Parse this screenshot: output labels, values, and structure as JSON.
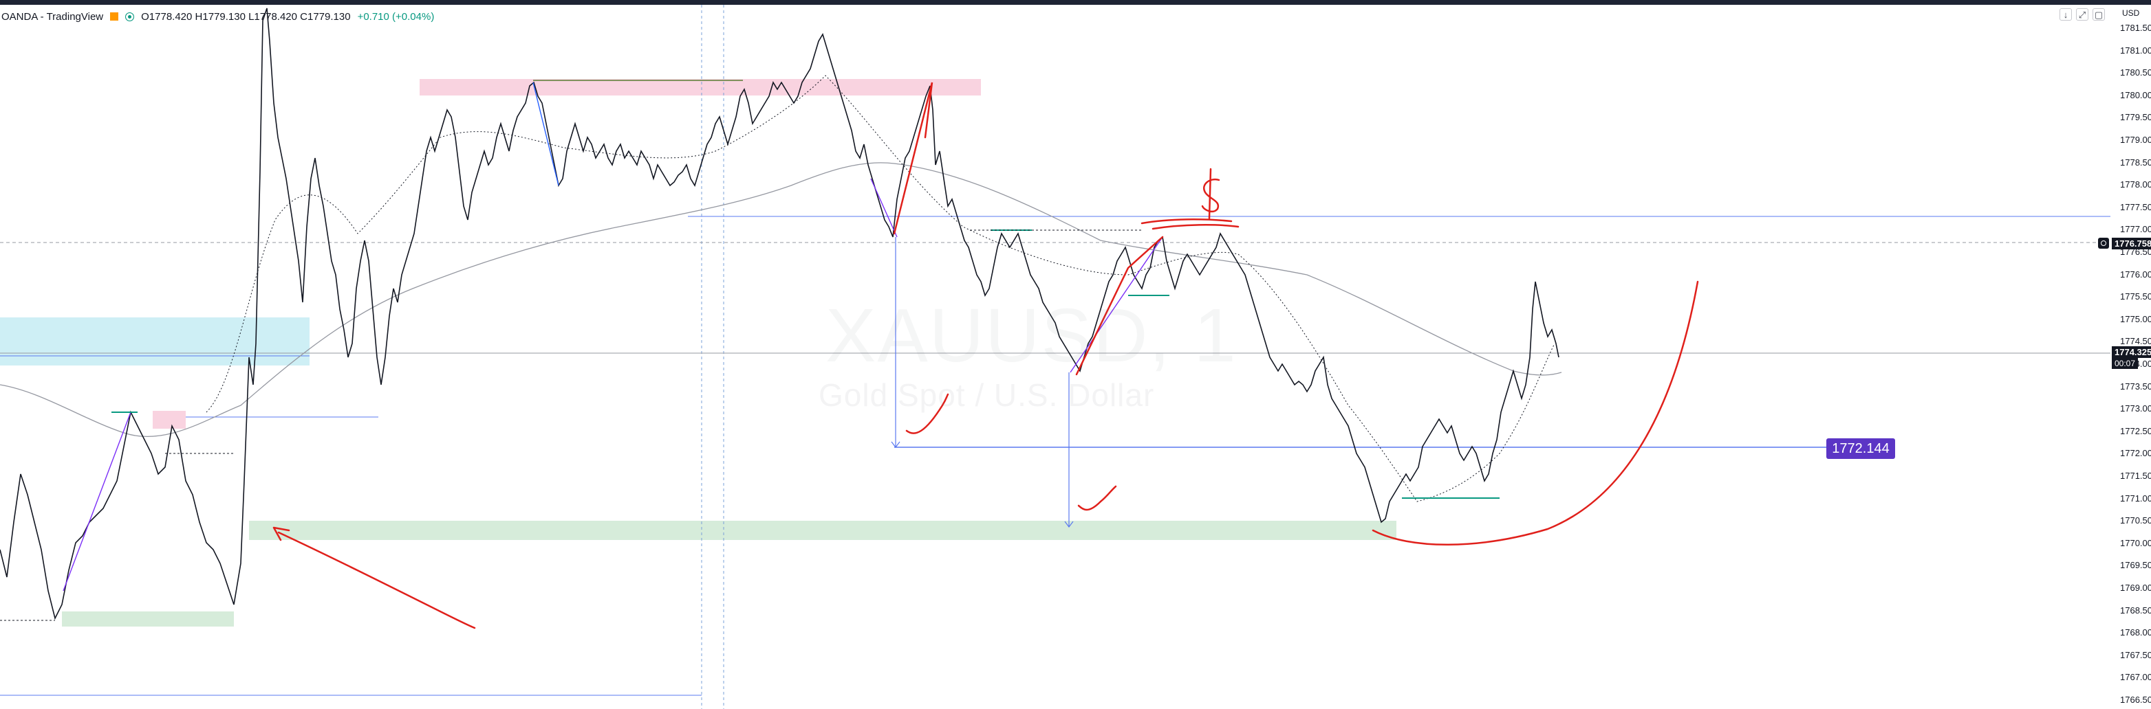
{
  "header": {
    "symbol_source": "OANDA - TradingView",
    "ohlc": "O1778.420 H1779.130 L1778.420 C1779.130",
    "change": "+0.710 (+0.04%)"
  },
  "watermark": {
    "ticker": "XAUUSD, 1",
    "description": "Gold Spot / U.S. Dollar"
  },
  "price_axis": {
    "currency": "USD",
    "ticks": [
      "1781.500",
      "1781.000",
      "1780.500",
      "1780.000",
      "1779.500",
      "1779.000",
      "1778.500",
      "1778.000",
      "1777.500",
      "1777.000",
      "1776.500",
      "1776.000",
      "1775.500",
      "1775.000",
      "1774.500",
      "1774.000",
      "1773.500",
      "1773.000",
      "1772.500",
      "1772.000",
      "1771.500",
      "1771.000",
      "1770.500",
      "1770.000",
      "1769.500",
      "1769.000",
      "1768.500",
      "1768.000",
      "1767.500",
      "1767.000",
      "1766.500"
    ],
    "crosshair_price": "1776.758",
    "last_price": "1774.325",
    "countdown": "00:07"
  },
  "annotations": {
    "horizontal_level": "1772.144",
    "dollar_sign": "$"
  },
  "window_controls": {
    "download_icon": "download-icon",
    "maximize_icon": "maximize-icon",
    "fullscreen_icon": "fullscreen-icon"
  },
  "colors": {
    "background": "#ffffff",
    "up_candle": "#ffffff",
    "down_candle": "#131722",
    "supply_zone": "#f8c8d8",
    "demand_zone": "#cfe9d3",
    "cyan_zone": "#c9edf4",
    "level_line": "#5a78f0",
    "level_badge": "#5b35c5",
    "drawing_red": "#e0201b",
    "ma_line": "#9598a1"
  }
}
